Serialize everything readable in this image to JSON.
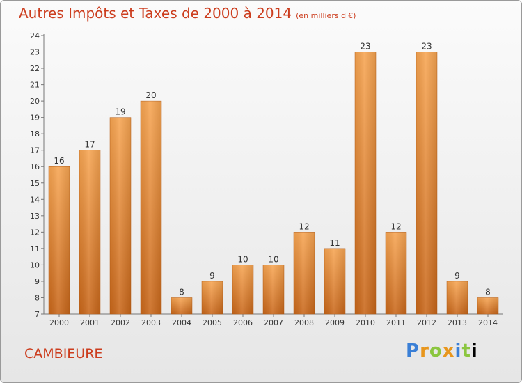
{
  "title": "Autres Impôts et Taxes de 2000 à 2014",
  "unit": "(en milliers d'€)",
  "place": "CAMBIEURE",
  "brand": [
    "P",
    "r",
    "o",
    "x",
    "i",
    "t",
    "i"
  ],
  "colors": {
    "bar_top": "#f7a552",
    "bar_bottom": "#c9671a",
    "title": "#cc3d1e"
  },
  "chart_data": {
    "type": "bar",
    "title": "Autres Impôts et Taxes de 2000 à 2014",
    "categories": [
      "2000",
      "2001",
      "2002",
      "2003",
      "2004",
      "2005",
      "2006",
      "2007",
      "2008",
      "2009",
      "2010",
      "2011",
      "2012",
      "2013",
      "2014"
    ],
    "values": [
      16,
      17,
      19,
      20,
      8,
      9,
      10,
      10,
      12,
      11,
      23,
      12,
      23,
      9,
      8
    ],
    "ylim": [
      7,
      24
    ],
    "yticks": [
      7,
      8,
      9,
      10,
      11,
      12,
      13,
      14,
      15,
      16,
      17,
      18,
      19,
      20,
      21,
      22,
      23,
      24
    ],
    "grid": false,
    "data_labels": true
  }
}
